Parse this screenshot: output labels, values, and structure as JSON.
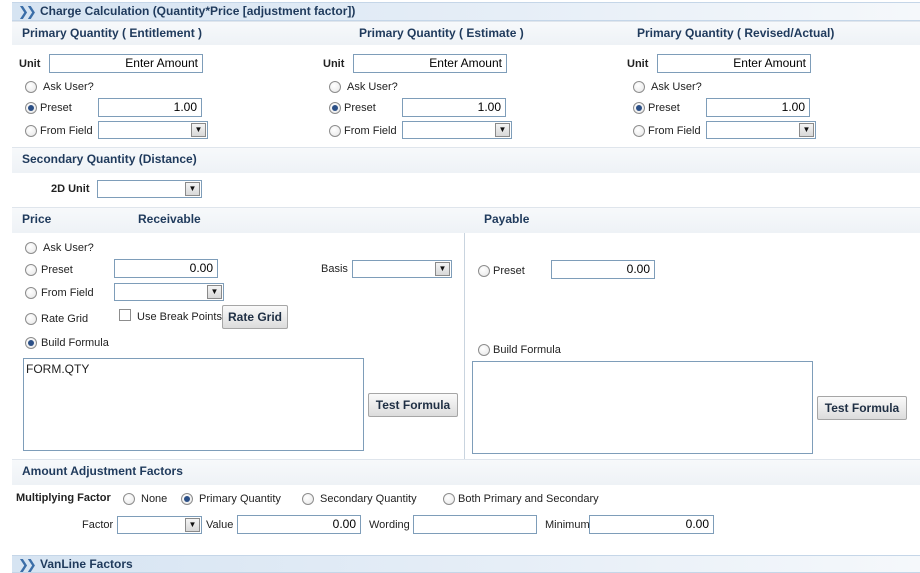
{
  "charge_calc": {
    "title": "Charge Calculation (Quantity*Price [adjustment factor])",
    "columns": [
      {
        "title": "Primary Quantity  ( Entitlement )",
        "unit_label": "Unit",
        "unit_value": "Enter Amount",
        "ask_label": "Ask User?",
        "preset_label": "Preset",
        "preset_value": "1.00",
        "from_field_label": "From Field",
        "selected": "preset"
      },
      {
        "title": "Primary Quantity  ( Estimate )",
        "unit_label": "Unit",
        "unit_value": "Enter Amount",
        "ask_label": "Ask User?",
        "preset_label": "Preset",
        "preset_value": "1.00",
        "from_field_label": "From Field",
        "selected": "preset"
      },
      {
        "title": "Primary Quantity  ( Revised/Actual)",
        "unit_label": "Unit",
        "unit_value": "Enter Amount",
        "ask_label": "Ask User?",
        "preset_label": "Preset",
        "preset_value": "1.00",
        "from_field_label": "From Field",
        "selected": "preset"
      }
    ]
  },
  "secondary": {
    "title": "Secondary Quantity (Distance)",
    "unit_label": "2D Unit",
    "unit_value": ""
  },
  "price": {
    "title": "Price",
    "receivable": {
      "title": "Receivable",
      "ask_label": "Ask User?",
      "preset_label": "Preset",
      "preset_value": "0.00",
      "basis_label": "Basis",
      "from_field_label": "From Field",
      "rate_grid_label": "Rate Grid",
      "break_points_label": "Use Break Points",
      "rate_grid_button": "Rate Grid",
      "build_formula_label": "Build Formula",
      "formula": "FORM.QTY",
      "test_button": "Test Formula",
      "selected": "build_formula"
    },
    "payable": {
      "title": "Payable",
      "preset_label": "Preset",
      "preset_value": "0.00",
      "build_formula_label": "Build Formula",
      "formula": "",
      "test_button": "Test Formula"
    }
  },
  "adjustment": {
    "title": "Amount Adjustment Factors",
    "multiplying_label": "Multiplying Factor",
    "options": [
      "None",
      "Primary Quantity",
      "Secondary Quantity",
      "Both Primary and Secondary"
    ],
    "selected_index": 1,
    "factor_label": "Factor",
    "value_label": "Value",
    "value": "0.00",
    "wording_label": "Wording",
    "wording_value": "",
    "minimum_label": "Minimum",
    "minimum_value": "0.00"
  },
  "vanline": {
    "title": "VanLine Factors"
  },
  "icons": {
    "panel_chevron": "double-chevron-right-icon",
    "select_arrow": "chevron-down-icon"
  },
  "colors": {
    "header_text": "#1f3a5c",
    "input_border": "#7e9db9",
    "radio_checked": "#2b4f86"
  }
}
